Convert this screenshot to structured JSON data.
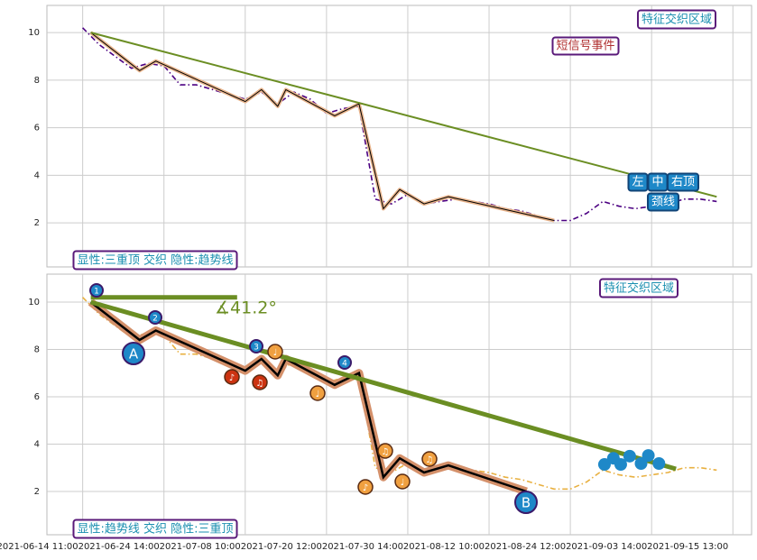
{
  "chart_data": [
    {
      "type": "line",
      "xlim": [
        -4.4,
        82.3
      ],
      "xticks": [
        0,
        10,
        20,
        30,
        40,
        50,
        60,
        70,
        80
      ],
      "ylim": [
        0.15,
        11.14
      ],
      "yticks": [
        2,
        4,
        6,
        8,
        10
      ],
      "grid": true,
      "series": [
        {
          "color": "#4b0082",
          "linestyle": "dashdot",
          "x": [
            0,
            2,
            4,
            6,
            8,
            10,
            12,
            14,
            16,
            18,
            20,
            22,
            24,
            26,
            28,
            30,
            32,
            34,
            36,
            38,
            40,
            42,
            44,
            46,
            48,
            50,
            52,
            54,
            56,
            58,
            60,
            62,
            64,
            66,
            68,
            70,
            72,
            74,
            76,
            78
          ],
          "values": [
            10.2,
            9.5,
            9.0,
            8.5,
            8.7,
            8.6,
            7.8,
            7.8,
            7.6,
            7.4,
            7.2,
            7.5,
            7.0,
            7.5,
            7.2,
            6.6,
            6.8,
            6.9,
            3.0,
            2.8,
            3.2,
            2.8,
            2.9,
            3.0,
            2.9,
            2.8,
            2.6,
            2.5,
            2.3,
            2.1,
            2.1,
            2.4,
            2.9,
            2.7,
            2.6,
            2.7,
            2.8,
            3.0,
            3.0,
            2.9
          ]
        },
        {
          "color": "#e8b48c",
          "linestyle": "solid",
          "x": [
            1,
            7,
            9,
            20,
            22,
            24,
            25,
            31,
            34,
            37,
            39,
            42,
            45,
            58
          ],
          "values": [
            10,
            8.4,
            8.8,
            7.1,
            7.6,
            6.9,
            7.6,
            6.5,
            7.0,
            2.6,
            3.4,
            2.8,
            3.1,
            2.1
          ]
        },
        {
          "color": "#6b8e23",
          "linestyle": "solid",
          "x": [
            1,
            78
          ],
          "values": [
            10,
            3.1
          ]
        }
      ],
      "annotations": [
        "特征交织区域",
        "短信号事件",
        "左",
        "中",
        "右顶",
        "颈线",
        "显性:三重顶 交织 隐性:趋势线"
      ]
    },
    {
      "type": "line",
      "xlim": [
        -4.4,
        82.3
      ],
      "xticks": [
        {
          "value": 0,
          "label": "2021-06-14 11:00"
        },
        {
          "value": 10,
          "label": "2021-06-24 14:00"
        },
        {
          "value": 20,
          "label": "2021-07-08 10:00"
        },
        {
          "value": 30,
          "label": "2021-07-20 12:00"
        },
        {
          "value": 40,
          "label": "2021-07-30 14:00"
        },
        {
          "value": 50,
          "label": "2021-08-12 10:00"
        },
        {
          "value": 60,
          "label": "2021-08-24 12:00"
        },
        {
          "value": 70,
          "label": "2021-09-03 14:00"
        },
        {
          "value": 80,
          "label": "2021-09-15 13:00"
        }
      ],
      "ylim": [
        0.17,
        11.18
      ],
      "yticks": [
        2,
        4,
        6,
        8,
        10
      ],
      "grid": true,
      "series": [
        {
          "color": "#e8b040",
          "linestyle": "dashdot",
          "x": [
            0,
            2,
            4,
            6,
            8,
            10,
            12,
            14,
            16,
            18,
            20,
            22,
            24,
            26,
            28,
            30,
            32,
            34,
            36,
            38,
            40,
            42,
            44,
            46,
            48,
            50,
            52,
            54,
            56,
            58,
            60,
            62,
            64,
            66,
            68,
            70,
            72,
            74,
            76,
            78
          ],
          "values": [
            10.2,
            9.5,
            9.0,
            8.5,
            8.7,
            8.6,
            7.8,
            7.8,
            7.6,
            7.4,
            7.2,
            7.5,
            7.0,
            7.5,
            7.2,
            6.6,
            6.8,
            6.9,
            3.0,
            2.8,
            3.2,
            2.8,
            2.9,
            3.0,
            2.9,
            2.8,
            2.6,
            2.5,
            2.3,
            2.1,
            2.1,
            2.4,
            2.9,
            2.7,
            2.6,
            2.7,
            2.8,
            3.0,
            3.0,
            2.9
          ]
        },
        {
          "color": "#d4906a",
          "linestyle": "solid",
          "x": [
            1,
            7,
            9,
            20,
            22,
            24,
            25,
            31,
            34,
            37,
            39,
            42,
            45,
            54.6
          ],
          "values": [
            10,
            8.4,
            8.8,
            7.1,
            7.6,
            6.9,
            7.6,
            6.5,
            7.0,
            2.6,
            3.4,
            2.8,
            3.1,
            2.0
          ]
        },
        {
          "color": "#6b8e23",
          "linestyle": "solid",
          "x": [
            1,
            73
          ],
          "values": [
            10,
            2.95
          ]
        },
        {
          "color": "#6b8e23",
          "linestyle": "solid",
          "x": [
            1,
            19
          ],
          "values": [
            10.2,
            10.2
          ]
        }
      ],
      "points": {
        "color": "#1e88c8",
        "x": [
          64.2,
          65.3,
          66.2,
          67.3,
          68.7,
          69.6,
          70.9
        ],
        "values": [
          3.14,
          3.4,
          3.14,
          3.49,
          3.18,
          3.52,
          3.18
        ]
      },
      "angle_label": "∡41.2°",
      "markers": [
        "1",
        "2",
        "3",
        "4",
        "A",
        "B"
      ],
      "notes": [
        "♪",
        "♫",
        "♩",
        "♩",
        "♪",
        "♫",
        "♩",
        "♫"
      ],
      "annotations": [
        "特征交织区域",
        "显性:趋势线 交织 隐性:三重顶"
      ]
    }
  ]
}
